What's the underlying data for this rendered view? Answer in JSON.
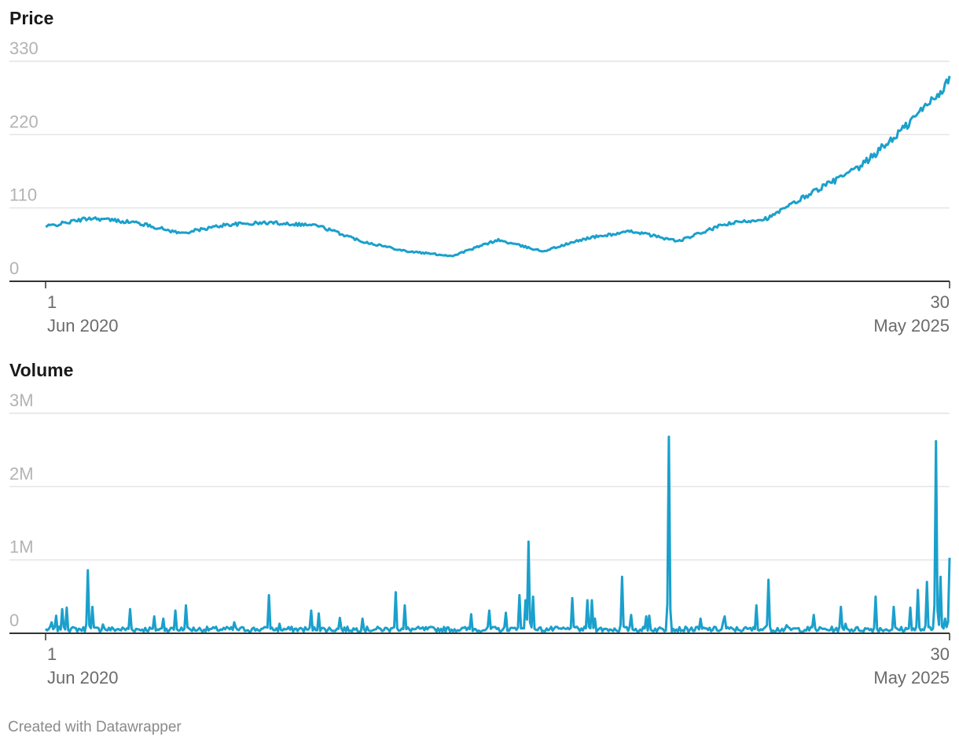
{
  "colors": {
    "line": "#1aa0cc",
    "grid": "#dedede",
    "axis": "#333333"
  },
  "footer": "Created with Datawrapper",
  "chart_data": [
    {
      "type": "line",
      "title": "Price",
      "x_start": {
        "day": "1",
        "month_year": "Jun 2020"
      },
      "x_end": {
        "day": "30",
        "month_year": "May 2025"
      },
      "x": [
        "2020-06",
        "2020-09",
        "2020-12",
        "2021-03",
        "2021-06",
        "2021-09",
        "2021-12",
        "2022-03",
        "2022-06",
        "2022-09",
        "2022-12",
        "2023-03",
        "2023-06",
        "2023-09",
        "2023-12",
        "2024-03",
        "2024-06",
        "2024-09",
        "2024-12",
        "2025-03",
        "2025-05"
      ],
      "ylim": [
        0,
        330
      ],
      "yticks": [
        {
          "value": 0,
          "label": "0"
        },
        {
          "value": 110,
          "label": "110"
        },
        {
          "value": 220,
          "label": "220"
        },
        {
          "value": 330,
          "label": "330"
        }
      ],
      "series": [
        {
          "values": [
            82,
            95,
            88,
            72,
            85,
            88,
            84,
            60,
            45,
            38,
            62,
            45,
            65,
            75,
            60,
            85,
            95,
            135,
            170,
            230,
            300
          ]
        }
      ]
    },
    {
      "type": "line",
      "title": "Volume",
      "x_start": {
        "day": "1",
        "month_year": "Jun 2020"
      },
      "x_end": {
        "day": "30",
        "month_year": "May 2025"
      },
      "ylim": [
        0,
        3000000
      ],
      "yticks": [
        {
          "value": 0,
          "label": "0"
        },
        {
          "value": 1000000,
          "label": "1M"
        },
        {
          "value": 2000000,
          "label": "2M"
        },
        {
          "value": 3000000,
          "label": "3M"
        }
      ],
      "baseline": 60000,
      "spikes": [
        {
          "t": 0.006,
          "v": 150000
        },
        {
          "t": 0.012,
          "v": 240000
        },
        {
          "t": 0.019,
          "v": 330000
        },
        {
          "t": 0.024,
          "v": 350000
        },
        {
          "t": 0.047,
          "v": 860000
        },
        {
          "t": 0.051,
          "v": 360000
        },
        {
          "t": 0.064,
          "v": 120000
        },
        {
          "t": 0.093,
          "v": 330000
        },
        {
          "t": 0.121,
          "v": 230000
        },
        {
          "t": 0.131,
          "v": 200000
        },
        {
          "t": 0.143,
          "v": 310000
        },
        {
          "t": 0.156,
          "v": 380000
        },
        {
          "t": 0.208,
          "v": 150000
        },
        {
          "t": 0.247,
          "v": 520000
        },
        {
          "t": 0.259,
          "v": 130000
        },
        {
          "t": 0.294,
          "v": 310000
        },
        {
          "t": 0.303,
          "v": 270000
        },
        {
          "t": 0.325,
          "v": 210000
        },
        {
          "t": 0.35,
          "v": 200000
        },
        {
          "t": 0.388,
          "v": 560000
        },
        {
          "t": 0.398,
          "v": 380000
        },
        {
          "t": 0.47,
          "v": 260000
        },
        {
          "t": 0.49,
          "v": 310000
        },
        {
          "t": 0.51,
          "v": 280000
        },
        {
          "t": 0.525,
          "v": 520000
        },
        {
          "t": 0.531,
          "v": 450000
        },
        {
          "t": 0.535,
          "v": 1250000
        },
        {
          "t": 0.54,
          "v": 500000
        },
        {
          "t": 0.54,
          "v": 230000
        },
        {
          "t": 0.582,
          "v": 480000
        },
        {
          "t": 0.6,
          "v": 450000
        },
        {
          "t": 0.605,
          "v": 450000
        },
        {
          "t": 0.608,
          "v": 200000
        },
        {
          "t": 0.637,
          "v": 770000
        },
        {
          "t": 0.647,
          "v": 250000
        },
        {
          "t": 0.665,
          "v": 230000
        },
        {
          "t": 0.665,
          "v": 230000
        },
        {
          "t": 0.667,
          "v": 240000
        },
        {
          "t": 0.69,
          "v": 2680000
        },
        {
          "t": 0.725,
          "v": 200000
        },
        {
          "t": 0.749,
          "v": 160000
        },
        {
          "t": 0.751,
          "v": 230000
        },
        {
          "t": 0.787,
          "v": 380000
        },
        {
          "t": 0.8,
          "v": 730000
        },
        {
          "t": 0.82,
          "v": 110000
        },
        {
          "t": 0.849,
          "v": 250000
        },
        {
          "t": 0.879,
          "v": 360000
        },
        {
          "t": 0.885,
          "v": 130000
        },
        {
          "t": 0.919,
          "v": 500000
        },
        {
          "t": 0.938,
          "v": 360000
        },
        {
          "t": 0.957,
          "v": 350000
        },
        {
          "t": 0.965,
          "v": 590000
        },
        {
          "t": 0.975,
          "v": 700000
        },
        {
          "t": 0.985,
          "v": 2620000
        },
        {
          "t": 0.99,
          "v": 220000
        },
        {
          "t": 0.99,
          "v": 770000
        },
        {
          "t": 0.995,
          "v": 200000
        },
        {
          "t": 1.0,
          "v": 1030000
        }
      ],
      "series": [
        {
          "values": []
        }
      ]
    }
  ]
}
